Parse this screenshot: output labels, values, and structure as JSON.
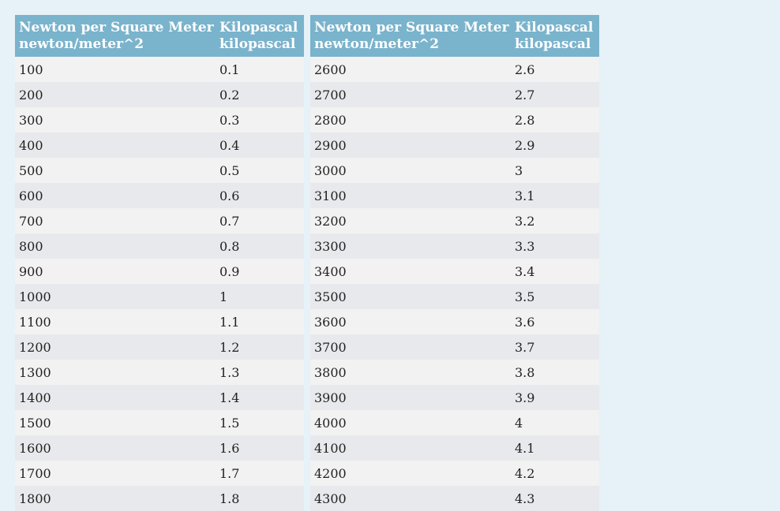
{
  "header": {
    "col1_line1": "Newton per Square Meter",
    "col1_line2": "newton/meter^2",
    "col2_line1": "Kilopascal",
    "col2_line2": "kilopascal"
  },
  "left_rows": [
    [
      "100",
      "0.1"
    ],
    [
      "200",
      "0.2"
    ],
    [
      "300",
      "0.3"
    ],
    [
      "400",
      "0.4"
    ],
    [
      "500",
      "0.5"
    ],
    [
      "600",
      "0.6"
    ],
    [
      "700",
      "0.7"
    ],
    [
      "800",
      "0.8"
    ],
    [
      "900",
      "0.9"
    ],
    [
      "1000",
      "1"
    ],
    [
      "1100",
      "1.1"
    ],
    [
      "1200",
      "1.2"
    ],
    [
      "1300",
      "1.3"
    ],
    [
      "1400",
      "1.4"
    ],
    [
      "1500",
      "1.5"
    ],
    [
      "1600",
      "1.6"
    ],
    [
      "1700",
      "1.7"
    ],
    [
      "1800",
      "1.8"
    ]
  ],
  "right_rows": [
    [
      "2600",
      "2.6"
    ],
    [
      "2700",
      "2.7"
    ],
    [
      "2800",
      "2.8"
    ],
    [
      "2900",
      "2.9"
    ],
    [
      "3000",
      "3"
    ],
    [
      "3100",
      "3.1"
    ],
    [
      "3200",
      "3.2"
    ],
    [
      "3300",
      "3.3"
    ],
    [
      "3400",
      "3.4"
    ],
    [
      "3500",
      "3.5"
    ],
    [
      "3600",
      "3.6"
    ],
    [
      "3700",
      "3.7"
    ],
    [
      "3800",
      "3.8"
    ],
    [
      "3900",
      "3.9"
    ],
    [
      "4000",
      "4"
    ],
    [
      "4100",
      "4.1"
    ],
    [
      "4200",
      "4.2"
    ],
    [
      "4300",
      "4.3"
    ]
  ]
}
